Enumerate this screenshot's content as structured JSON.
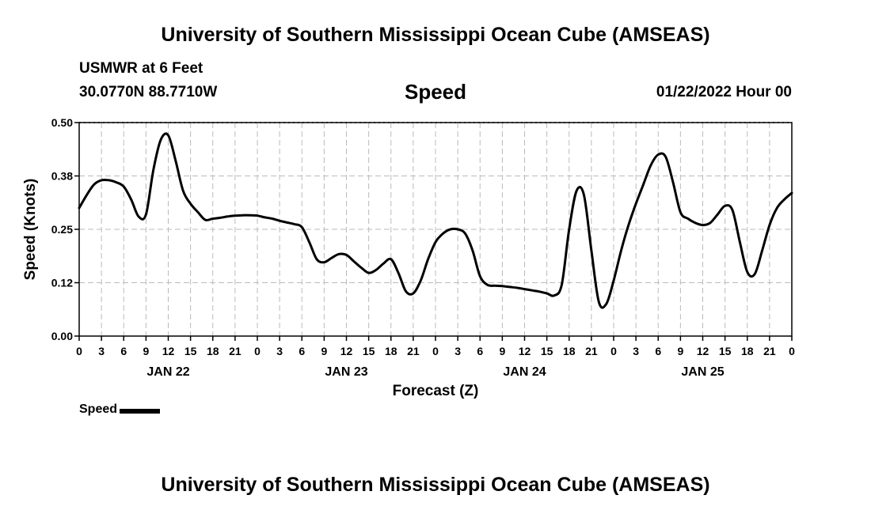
{
  "header": {
    "title": "University of Southern Mississippi Ocean Cube (AMSEAS)",
    "station": "USMWR at 6 Feet",
    "coords": "30.0770N  88.7710W",
    "variable": "Speed",
    "datetime": "01/22/2022 Hour 00"
  },
  "footer": {
    "title": "University of Southern Mississippi Ocean Cube (AMSEAS)"
  },
  "legend": {
    "label": "Speed"
  },
  "colors": {
    "line": "#000000",
    "grid": "#bbbbbb",
    "background": "#ffffff"
  },
  "chart_data": {
    "type": "line",
    "xlabel": "Forecast (Z)",
    "ylabel": "Speed (Knots)",
    "ylim": [
      0,
      0.5
    ],
    "xlim": [
      0,
      96
    ],
    "grid": true,
    "yticks": [
      {
        "value": 0,
        "label": "0.00"
      },
      {
        "value": 0.125,
        "label": "0.12"
      },
      {
        "value": 0.25,
        "label": "0.25"
      },
      {
        "value": 0.375,
        "label": "0.38"
      },
      {
        "value": 0.5,
        "label": "0.50"
      }
    ],
    "xticks": [
      {
        "value": 0,
        "label": "0"
      },
      {
        "value": 3,
        "label": "3"
      },
      {
        "value": 6,
        "label": "6"
      },
      {
        "value": 9,
        "label": "9"
      },
      {
        "value": 12,
        "label": "12"
      },
      {
        "value": 15,
        "label": "15"
      },
      {
        "value": 18,
        "label": "18"
      },
      {
        "value": 21,
        "label": "21"
      },
      {
        "value": 24,
        "label": "0"
      },
      {
        "value": 27,
        "label": "3"
      },
      {
        "value": 30,
        "label": "6"
      },
      {
        "value": 33,
        "label": "9"
      },
      {
        "value": 36,
        "label": "12"
      },
      {
        "value": 39,
        "label": "15"
      },
      {
        "value": 42,
        "label": "18"
      },
      {
        "value": 45,
        "label": "21"
      },
      {
        "value": 48,
        "label": "0"
      },
      {
        "value": 51,
        "label": "3"
      },
      {
        "value": 54,
        "label": "6"
      },
      {
        "value": 57,
        "label": "9"
      },
      {
        "value": 60,
        "label": "12"
      },
      {
        "value": 63,
        "label": "15"
      },
      {
        "value": 66,
        "label": "18"
      },
      {
        "value": 69,
        "label": "21"
      },
      {
        "value": 72,
        "label": "0"
      },
      {
        "value": 75,
        "label": "3"
      },
      {
        "value": 78,
        "label": "6"
      },
      {
        "value": 81,
        "label": "9"
      },
      {
        "value": 84,
        "label": "12"
      },
      {
        "value": 87,
        "label": "15"
      },
      {
        "value": 90,
        "label": "18"
      },
      {
        "value": 93,
        "label": "21"
      },
      {
        "value": 96,
        "label": "0"
      }
    ],
    "day_labels": [
      {
        "value": 12,
        "label": "JAN 22"
      },
      {
        "value": 36,
        "label": "JAN 23"
      },
      {
        "value": 60,
        "label": "JAN 24"
      },
      {
        "value": 84,
        "label": "JAN 25"
      }
    ],
    "series": [
      {
        "name": "Speed",
        "x": [
          0,
          1,
          2,
          3,
          4,
          5,
          6,
          7,
          8,
          9,
          10,
          11,
          12,
          13,
          14,
          15,
          16,
          17,
          18,
          19,
          20,
          21,
          22,
          23,
          24,
          25,
          26,
          27,
          28,
          29,
          30,
          31,
          32,
          33,
          34,
          35,
          36,
          37,
          38,
          39,
          40,
          41,
          42,
          43,
          44,
          45,
          46,
          47,
          48,
          49,
          50,
          51,
          52,
          53,
          54,
          55,
          56,
          57,
          58,
          59,
          60,
          61,
          62,
          63,
          64,
          65,
          66,
          67,
          68,
          69,
          70,
          71,
          72,
          73,
          74,
          75,
          76,
          77,
          78,
          79,
          80,
          81,
          82,
          83,
          84,
          85,
          86,
          87,
          88,
          89,
          90,
          91,
          92,
          93,
          94,
          95,
          96
        ],
        "values": [
          0.3,
          0.33,
          0.355,
          0.365,
          0.365,
          0.36,
          0.35,
          0.32,
          0.28,
          0.285,
          0.39,
          0.46,
          0.47,
          0.41,
          0.34,
          0.31,
          0.29,
          0.272,
          0.275,
          0.277,
          0.28,
          0.282,
          0.283,
          0.283,
          0.282,
          0.278,
          0.275,
          0.27,
          0.266,
          0.262,
          0.255,
          0.22,
          0.18,
          0.173,
          0.183,
          0.192,
          0.19,
          0.175,
          0.16,
          0.148,
          0.155,
          0.17,
          0.18,
          0.148,
          0.105,
          0.1,
          0.13,
          0.18,
          0.22,
          0.24,
          0.25,
          0.25,
          0.24,
          0.2,
          0.14,
          0.12,
          0.118,
          0.117,
          0.115,
          0.113,
          0.11,
          0.107,
          0.104,
          0.1,
          0.095,
          0.12,
          0.25,
          0.34,
          0.33,
          0.2,
          0.08,
          0.075,
          0.13,
          0.2,
          0.26,
          0.31,
          0.355,
          0.4,
          0.425,
          0.42,
          0.36,
          0.29,
          0.275,
          0.265,
          0.26,
          0.265,
          0.285,
          0.305,
          0.295,
          0.22,
          0.15,
          0.145,
          0.2,
          0.26,
          0.3,
          0.32,
          0.335
        ]
      }
    ]
  }
}
